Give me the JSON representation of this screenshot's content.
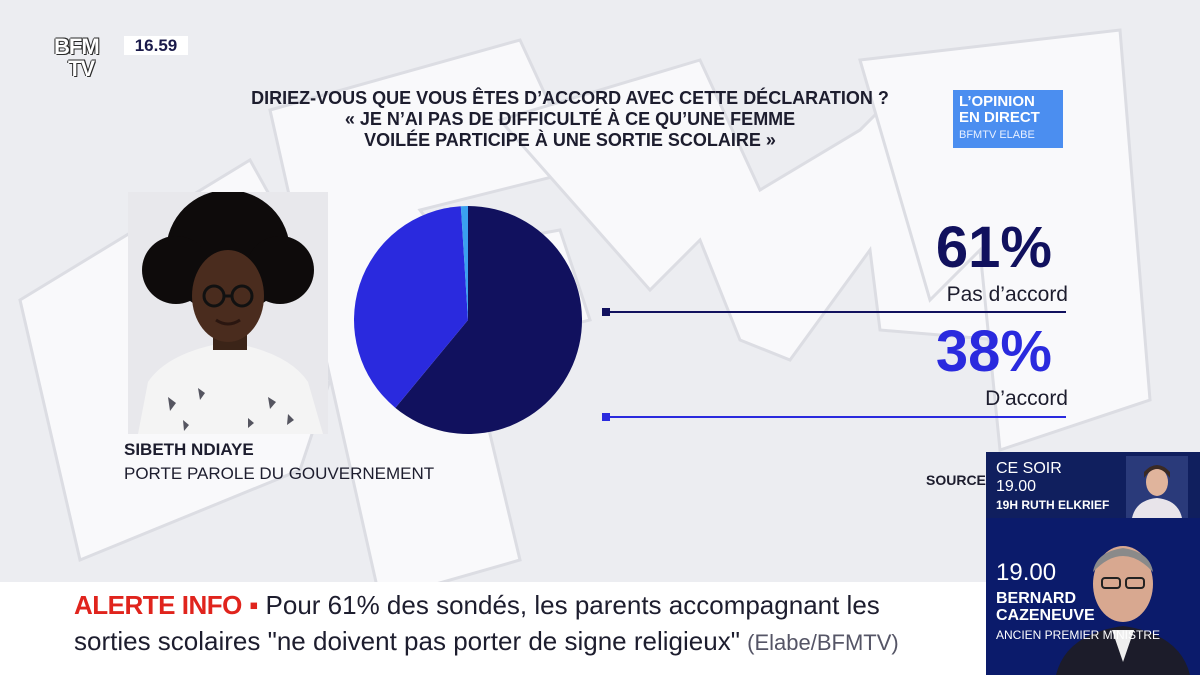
{
  "channel": {
    "logo_line1": "BFM",
    "logo_line2": "TV",
    "clock": "16.59"
  },
  "question": {
    "line1": "DIRIEZ-VOUS QUE VOUS ÊTES D’ACCORD AVEC CETTE DÉCLARATION ?",
    "line2": "« JE N’AI PAS DE DIFFICULTÉ À CE QU’UNE FEMME",
    "line3": "VOILÉE PARTICIPE À UNE SORTIE SCOLAIRE »"
  },
  "badge": {
    "line1": "L’OPINION",
    "line2": "EN DIRECT",
    "line3": "BFMTV ELABE"
  },
  "person": {
    "name": "SIBETH NDIAYE",
    "title": "PORTE PAROLE DU GOUVERNEMENT"
  },
  "chart_data": {
    "type": "pie",
    "start_angle_deg": -90,
    "slices": [
      {
        "label": "Pas d’accord",
        "value": 61,
        "display": "61%",
        "color": "#11115e"
      },
      {
        "label": "D’accord",
        "value": 38,
        "display": "38%",
        "color": "#2a2ade"
      },
      {
        "label": "",
        "value": 1,
        "display": "",
        "color": "#3aa0f0"
      }
    ]
  },
  "source": "SOURCE",
  "ticker": {
    "alert_label": "ALERTE INFO",
    "alert_marker": "▪",
    "line1": "Pour 61% des sondés, les parents accompagnant les",
    "line2": "sorties scolaires \"ne doivent pas porter de signe religieux\"",
    "source": "(Elabe/BFMTV)"
  },
  "promo": {
    "label": "CE SOIR",
    "time1": "19.00",
    "show": "19H RUTH ELKRIEF",
    "time2": "19.00",
    "guest_first": "BERNARD",
    "guest_last": "CAZENEUVE",
    "guest_role": "ANCIEN PREMIER MINISTRE"
  },
  "colors": {
    "accent_dark": "#11115e",
    "accent_blue": "#2a2ade",
    "alert_red": "#e0241d",
    "badge_blue": "#4b8ef0"
  }
}
